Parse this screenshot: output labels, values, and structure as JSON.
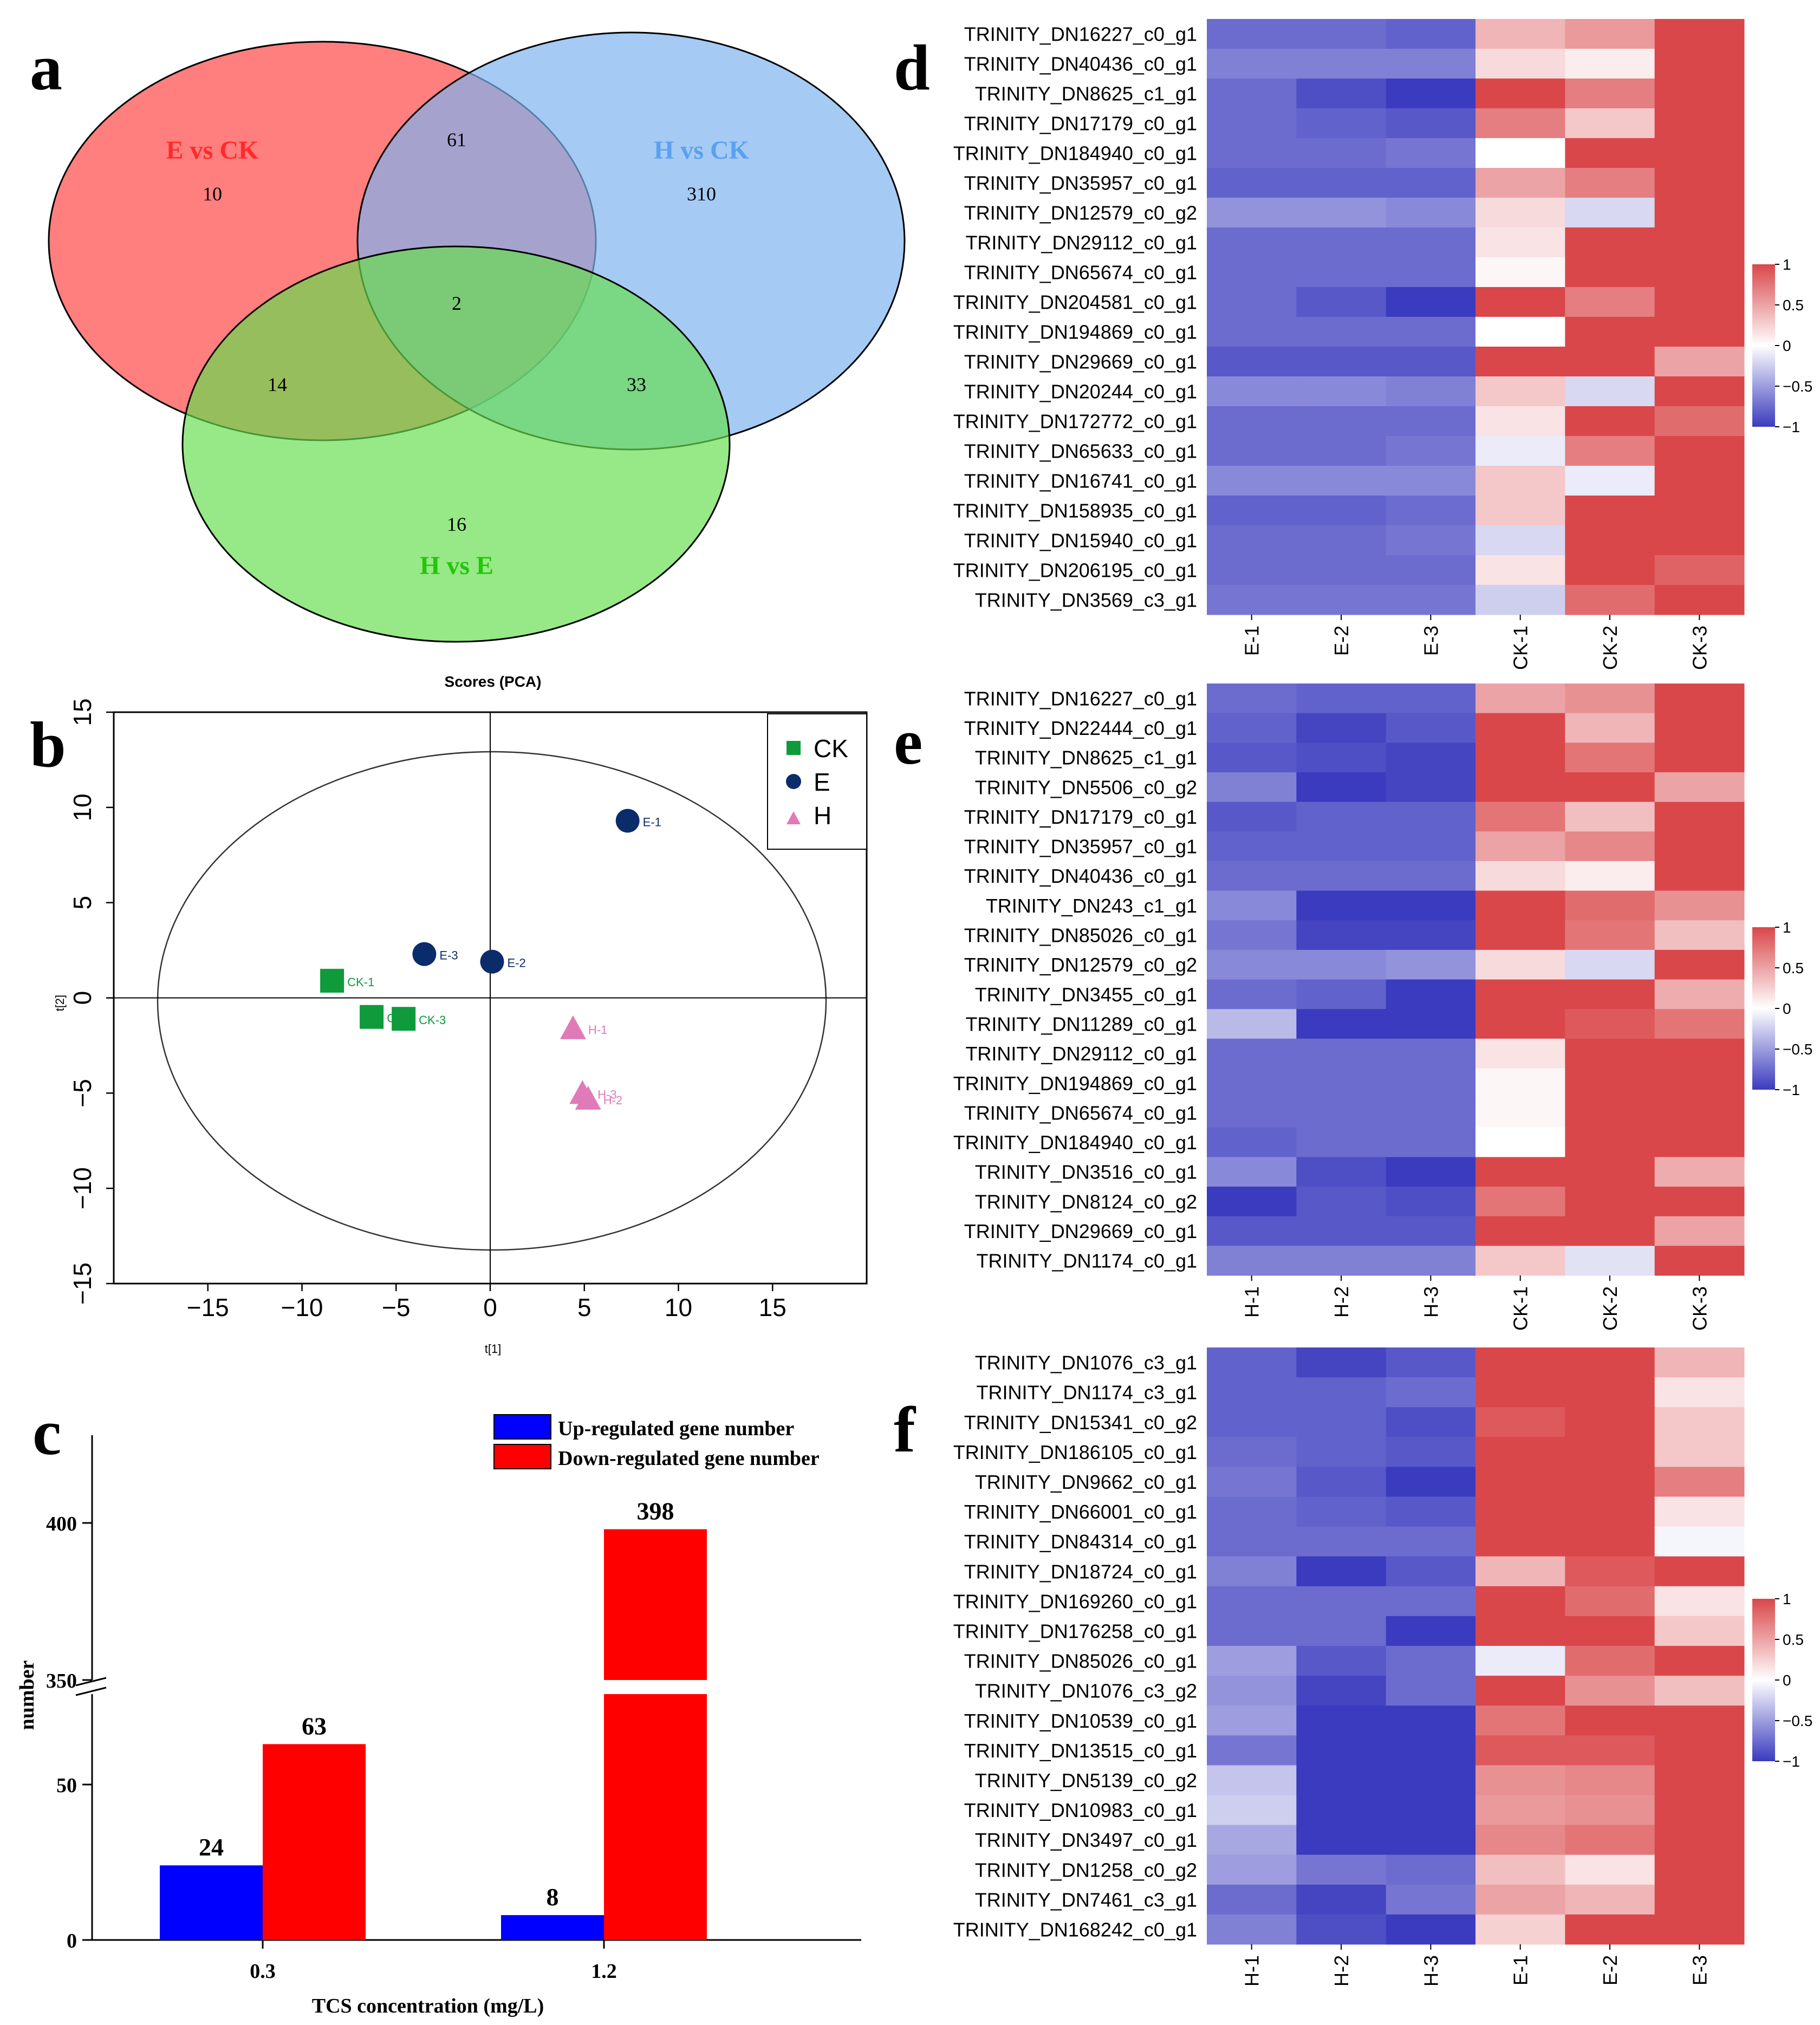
{
  "venn": {
    "panel_label": "a",
    "sets": [
      {
        "label": "E vs CK",
        "color": "#ff5a5a",
        "label_color": "#ff3333"
      },
      {
        "label": "H vs CK",
        "color": "#7fb3f0",
        "label_color": "#6aa6ee"
      },
      {
        "label": "H vs E",
        "color": "#66dd4d",
        "label_color": "#33cc11"
      }
    ],
    "counts": {
      "E_only": "10",
      "H_only": "310",
      "HE_only": "16",
      "E_H": "61",
      "E_HE": "14",
      "H_HE": "33",
      "all": "2"
    }
  },
  "pca": {
    "panel_label": "b",
    "title": "Scores (PCA)",
    "xlabel": "t[1]",
    "ylabel": "t[2]",
    "xlim": [
      -20,
      20
    ],
    "ylim": [
      -15,
      15
    ],
    "xticks": [
      "−15",
      "−10",
      "−5",
      "0",
      "5",
      "10",
      "15"
    ],
    "yticks": [
      "−15",
      "−10",
      "−5",
      "0",
      "5",
      "10",
      "15"
    ],
    "legend": [
      {
        "label": "CK",
        "color": "#0f9a3c",
        "shape": "square"
      },
      {
        "label": "E",
        "color": "#0b2c6b",
        "shape": "circle"
      },
      {
        "label": "H",
        "color": "#e07ab9",
        "shape": "triangle"
      }
    ],
    "points": [
      {
        "label": "CK-1",
        "group": "CK",
        "x": -8.4,
        "y": 0.9
      },
      {
        "label": "CK-2",
        "group": "CK",
        "x": -6.3,
        "y": -1.0
      },
      {
        "label": "CK-3",
        "group": "CK",
        "x": -4.6,
        "y": -1.1
      },
      {
        "label": "E-1",
        "group": "E",
        "x": 7.3,
        "y": 9.3
      },
      {
        "label": "E-2",
        "group": "E",
        "x": 0.1,
        "y": 1.9
      },
      {
        "label": "E-3",
        "group": "E",
        "x": -3.5,
        "y": 2.3
      },
      {
        "label": "H-1",
        "group": "H",
        "x": 4.4,
        "y": -1.6
      },
      {
        "label": "H-2",
        "group": "H",
        "x": 5.2,
        "y": -5.3
      },
      {
        "label": "H-3",
        "group": "H",
        "x": 4.9,
        "y": -5.0
      }
    ]
  },
  "bars": {
    "panel_label": "c",
    "xlabel": "TCS concentration (mg/L)",
    "ylabel": "number",
    "categories": [
      "0.3",
      "1.2"
    ],
    "series": [
      {
        "name": "Up-regulated gene number",
        "color": "#0000ff",
        "values": [
          24,
          8
        ],
        "labels": [
          "24",
          "8"
        ]
      },
      {
        "name": "Down-regulated gene number",
        "color": "#ff0000",
        "values": [
          63,
          398
        ],
        "labels": [
          "63",
          "398"
        ]
      }
    ],
    "yticks_low": [
      "0",
      "50"
    ],
    "yticks_high": [
      "350",
      "400"
    ]
  },
  "heatmaps": [
    {
      "panel_label": "d",
      "columns": [
        "E-1",
        "E-2",
        "E-3",
        "CK-1",
        "CK-2",
        "CK-3"
      ],
      "rows": [
        "TRINITY_DN16227_c0_g1",
        "TRINITY_DN40436_c0_g1",
        "TRINITY_DN8625_c1_g1",
        "TRINITY_DN17179_c0_g1",
        "TRINITY_DN184940_c0_g1",
        "TRINITY_DN35957_c0_g1",
        "TRINITY_DN12579_c0_g2",
        "TRINITY_DN29112_c0_g1",
        "TRINITY_DN65674_c0_g1",
        "TRINITY_DN204581_c0_g1",
        "TRINITY_DN194869_c0_g1",
        "TRINITY_DN29669_c0_g1",
        "TRINITY_DN20244_c0_g1",
        "TRINITY_DN172772_c0_g1",
        "TRINITY_DN65633_c0_g1",
        "TRINITY_DN16741_c0_g1",
        "TRINITY_DN158935_c0_g1",
        "TRINITY_DN15940_c0_g1",
        "TRINITY_DN206195_c0_g1",
        "TRINITY_DN3569_c3_g1"
      ],
      "values": [
        [
          -0.75,
          -0.75,
          -0.8,
          0.4,
          0.55,
          1
        ],
        [
          -0.65,
          -0.65,
          -0.65,
          0.2,
          0.1,
          1
        ],
        [
          -0.75,
          -0.9,
          -1,
          1,
          0.7,
          1
        ],
        [
          -0.75,
          -0.8,
          -0.85,
          0.7,
          0.3,
          1
        ],
        [
          -0.75,
          -0.75,
          -0.7,
          0,
          1,
          1
        ],
        [
          -0.8,
          -0.8,
          -0.8,
          0.5,
          0.7,
          1
        ],
        [
          -0.55,
          -0.55,
          -0.6,
          0.2,
          -0.2,
          1
        ],
        [
          -0.75,
          -0.75,
          -0.75,
          0.15,
          1,
          1
        ],
        [
          -0.75,
          -0.75,
          -0.75,
          0.05,
          1,
          1
        ],
        [
          -0.75,
          -0.85,
          -1,
          1,
          0.7,
          1
        ],
        [
          -0.75,
          -0.75,
          -0.75,
          0,
          1,
          1
        ],
        [
          -0.85,
          -0.85,
          -0.85,
          1,
          1,
          0.5
        ],
        [
          -0.6,
          -0.6,
          -0.65,
          0.3,
          -0.2,
          1
        ],
        [
          -0.75,
          -0.75,
          -0.75,
          0.15,
          1,
          0.8
        ],
        [
          -0.75,
          -0.75,
          -0.7,
          -0.1,
          0.7,
          1
        ],
        [
          -0.6,
          -0.6,
          -0.6,
          0.3,
          -0.1,
          1
        ],
        [
          -0.8,
          -0.8,
          -0.75,
          0.3,
          1,
          1
        ],
        [
          -0.75,
          -0.75,
          -0.7,
          -0.2,
          1,
          1
        ],
        [
          -0.75,
          -0.75,
          -0.75,
          0.15,
          1,
          0.85
        ],
        [
          -0.7,
          -0.7,
          -0.7,
          -0.25,
          0.8,
          1
        ]
      ]
    },
    {
      "panel_label": "e",
      "columns": [
        "H-1",
        "H-2",
        "H-3",
        "CK-1",
        "CK-2",
        "CK-3"
      ],
      "rows": [
        "TRINITY_DN16227_c0_g1",
        "TRINITY_DN22444_c0_g1",
        "TRINITY_DN8625_c1_g1",
        "TRINITY_DN5506_c0_g2",
        "TRINITY_DN17179_c0_g1",
        "TRINITY_DN35957_c0_g1",
        "TRINITY_DN40436_c0_g1",
        "TRINITY_DN243_c1_g1",
        "TRINITY_DN85026_c0_g1",
        "TRINITY_DN12579_c0_g2",
        "TRINITY_DN3455_c0_g1",
        "TRINITY_DN11289_c0_g1",
        "TRINITY_DN29112_c0_g1",
        "TRINITY_DN194869_c0_g1",
        "TRINITY_DN65674_c0_g1",
        "TRINITY_DN184940_c0_g1",
        "TRINITY_DN3516_c0_g1",
        "TRINITY_DN8124_c0_g2",
        "TRINITY_DN29669_c0_g1",
        "TRINITY_DN1174_c0_g1"
      ],
      "values": [
        [
          -0.75,
          -0.8,
          -0.8,
          0.5,
          0.6,
          1
        ],
        [
          -0.8,
          -0.95,
          -0.85,
          1,
          0.4,
          1
        ],
        [
          -0.85,
          -0.9,
          -0.95,
          1,
          0.75,
          1
        ],
        [
          -0.65,
          -1,
          -0.95,
          1,
          1,
          0.5
        ],
        [
          -0.85,
          -0.8,
          -0.8,
          0.75,
          0.35,
          1
        ],
        [
          -0.8,
          -0.8,
          -0.8,
          0.5,
          0.65,
          1
        ],
        [
          -0.75,
          -0.75,
          -0.75,
          0.2,
          0.1,
          1
        ],
        [
          -0.6,
          -1,
          -1,
          1,
          0.8,
          0.6
        ],
        [
          -0.7,
          -0.95,
          -0.95,
          1,
          0.75,
          0.35
        ],
        [
          -0.6,
          -0.6,
          -0.55,
          0.2,
          -0.2,
          1
        ],
        [
          -0.75,
          -0.8,
          -1,
          1,
          1,
          0.45
        ],
        [
          -0.35,
          -1,
          -1,
          1,
          0.9,
          0.75
        ],
        [
          -0.75,
          -0.75,
          -0.75,
          0.15,
          1,
          1
        ],
        [
          -0.75,
          -0.75,
          -0.75,
          0.05,
          1,
          1
        ],
        [
          -0.75,
          -0.75,
          -0.75,
          0.05,
          1,
          1
        ],
        [
          -0.8,
          -0.75,
          -0.75,
          0,
          1,
          1
        ],
        [
          -0.6,
          -0.9,
          -1,
          1,
          1,
          0.45
        ],
        [
          -1,
          -0.85,
          -0.9,
          0.75,
          1,
          1
        ],
        [
          -0.85,
          -0.85,
          -0.85,
          1,
          1,
          0.5
        ],
        [
          -0.65,
          -0.65,
          -0.65,
          0.3,
          -0.15,
          1
        ]
      ]
    },
    {
      "panel_label": "f",
      "columns": [
        "H-1",
        "H-2",
        "H-3",
        "E-1",
        "E-2",
        "E-3"
      ],
      "rows": [
        "TRINITY_DN1076_c3_g1",
        "TRINITY_DN1174_c3_g1",
        "TRINITY_DN15341_c0_g2",
        "TRINITY_DN186105_c0_g1",
        "TRINITY_DN9662_c0_g1",
        "TRINITY_DN66001_c0_g1",
        "TRINITY_DN84314_c0_g1",
        "TRINITY_DN18724_c0_g1",
        "TRINITY_DN169260_c0_g1",
        "TRINITY_DN176258_c0_g1",
        "TRINITY_DN85026_c0_g1",
        "TRINITY_DN1076_c3_g2",
        "TRINITY_DN10539_c0_g1",
        "TRINITY_DN13515_c0_g1",
        "TRINITY_DN5139_c0_g2",
        "TRINITY_DN10983_c0_g1",
        "TRINITY_DN3497_c0_g1",
        "TRINITY_DN1258_c0_g2",
        "TRINITY_DN7461_c3_g1",
        "TRINITY_DN168242_c0_g1"
      ],
      "values": [
        [
          -0.8,
          -0.95,
          -0.85,
          1,
          1,
          0.4
        ],
        [
          -0.8,
          -0.8,
          -0.75,
          1,
          1,
          0.15
        ],
        [
          -0.8,
          -0.8,
          -0.9,
          0.9,
          1,
          0.3
        ],
        [
          -0.75,
          -0.8,
          -0.85,
          1,
          1,
          0.3
        ],
        [
          -0.7,
          -0.85,
          -1,
          1,
          1,
          0.7
        ],
        [
          -0.75,
          -0.8,
          -0.85,
          1,
          1,
          0.15
        ],
        [
          -0.75,
          -0.75,
          -0.75,
          1,
          1,
          -0.05
        ],
        [
          -0.65,
          -1,
          -0.85,
          0.4,
          0.9,
          1
        ],
        [
          -0.75,
          -0.75,
          -0.75,
          1,
          0.8,
          0.15
        ],
        [
          -0.75,
          -0.75,
          -1,
          1,
          1,
          0.3
        ],
        [
          -0.5,
          -0.85,
          -0.75,
          -0.1,
          0.8,
          1
        ],
        [
          -0.55,
          -0.95,
          -0.75,
          1,
          0.6,
          0.35
        ],
        [
          -0.5,
          -1,
          -1,
          0.75,
          1,
          1
        ],
        [
          -0.7,
          -1,
          -1,
          0.9,
          0.9,
          1
        ],
        [
          -0.3,
          -1,
          -1,
          0.6,
          0.65,
          1
        ],
        [
          -0.25,
          -1,
          -1,
          0.55,
          0.6,
          1
        ],
        [
          -0.45,
          -1,
          -1,
          0.65,
          0.75,
          1
        ],
        [
          -0.5,
          -0.7,
          -0.75,
          0.35,
          0.15,
          1
        ],
        [
          -0.75,
          -0.95,
          -0.7,
          0.5,
          0.4,
          1
        ],
        [
          -0.65,
          -0.9,
          -1,
          0.25,
          1,
          1
        ]
      ]
    }
  ],
  "colorbar": {
    "ticks": [
      "1",
      "0.5",
      "0",
      "−0.5",
      "−1"
    ],
    "low": "#3b3bbf",
    "mid": "#ffffff",
    "high": "#d9474a"
  }
}
